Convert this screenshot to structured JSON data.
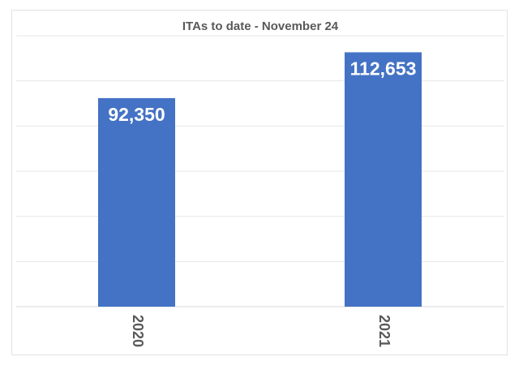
{
  "chart_data": {
    "type": "bar",
    "title": "ITAs to date - November 24",
    "xlabel": "",
    "ylabel": "",
    "categories": [
      "2020",
      "2021"
    ],
    "values": [
      92350,
      112653
    ],
    "value_labels": [
      "92,350",
      "112,653"
    ],
    "ylim": [
      0,
      120000
    ],
    "grid": true,
    "tick_step": 20000,
    "legend": "none",
    "bar_color": "#4472C4",
    "grid_color": "#e6e6e6"
  }
}
